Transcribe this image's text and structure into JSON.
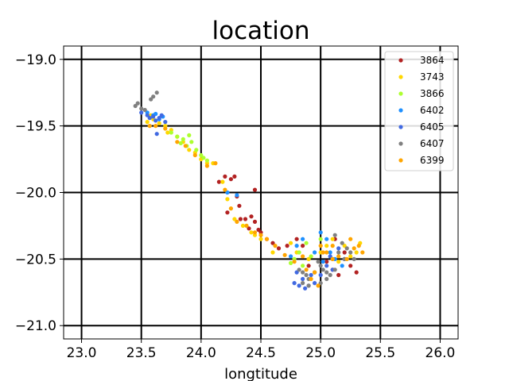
{
  "chart_data": {
    "type": "scatter",
    "title": "location",
    "xlabel": "longtitude",
    "ylabel": "",
    "xlim": [
      22.85,
      26.15
    ],
    "ylim": [
      -21.1,
      -18.9
    ],
    "xticks": [
      23.0,
      23.5,
      24.0,
      24.5,
      25.0,
      25.5,
      26.0
    ],
    "yticks": [
      -19.0,
      -19.5,
      -20.0,
      -20.5,
      -21.0
    ],
    "xtick_labels": [
      "23.0",
      "23.5",
      "24.0",
      "24.5",
      "25.0",
      "25.5",
      "26.0"
    ],
    "ytick_labels": [
      "−19.0",
      "−19.5",
      "−20.0",
      "−20.5",
      "−21.0"
    ],
    "grid": true,
    "legend_position": "top-right",
    "series": [
      {
        "name": "3864",
        "color": "#b22222",
        "points": [
          [
            24.15,
            -19.92
          ],
          [
            24.2,
            -19.88
          ],
          [
            24.25,
            -19.9
          ],
          [
            24.3,
            -20.03
          ],
          [
            24.45,
            -19.98
          ],
          [
            24.32,
            -20.1
          ],
          [
            24.37,
            -20.2
          ],
          [
            24.42,
            -20.18
          ],
          [
            24.45,
            -20.22
          ],
          [
            24.5,
            -20.3
          ],
          [
            24.55,
            -20.35
          ],
          [
            24.6,
            -20.38
          ],
          [
            24.48,
            -20.28
          ],
          [
            24.65,
            -20.42
          ],
          [
            24.72,
            -20.4
          ],
          [
            24.8,
            -20.35
          ],
          [
            24.85,
            -20.4
          ],
          [
            25.1,
            -20.58
          ],
          [
            25.15,
            -20.62
          ],
          [
            25.25,
            -20.55
          ],
          [
            25.2,
            -20.45
          ],
          [
            24.28,
            -19.88
          ],
          [
            24.33,
            -20.2
          ],
          [
            24.4,
            -20.27
          ],
          [
            25.05,
            -20.52
          ],
          [
            25.3,
            -20.6
          ],
          [
            24.9,
            -20.55
          ],
          [
            25.12,
            -20.35
          ],
          [
            24.22,
            -20.15
          ]
        ]
      },
      {
        "name": "3743",
        "color": "#ffd700",
        "points": [
          [
            23.6,
            -19.45
          ],
          [
            23.65,
            -19.48
          ],
          [
            23.7,
            -19.5
          ],
          [
            23.75,
            -19.53
          ],
          [
            23.55,
            -19.47
          ],
          [
            23.8,
            -19.58
          ],
          [
            23.85,
            -19.62
          ],
          [
            23.9,
            -19.68
          ],
          [
            23.95,
            -19.7
          ],
          [
            24.0,
            -19.75
          ],
          [
            24.05,
            -19.78
          ],
          [
            24.1,
            -19.78
          ],
          [
            24.18,
            -19.92
          ],
          [
            24.22,
            -20.05
          ],
          [
            24.28,
            -20.2
          ],
          [
            24.35,
            -20.25
          ],
          [
            24.42,
            -20.3
          ],
          [
            24.5,
            -20.35
          ],
          [
            24.6,
            -20.45
          ],
          [
            24.75,
            -20.38
          ],
          [
            24.8,
            -20.45
          ],
          [
            24.9,
            -20.5
          ],
          [
            25.0,
            -20.45
          ],
          [
            25.05,
            -20.4
          ],
          [
            25.1,
            -20.35
          ],
          [
            25.2,
            -20.4
          ],
          [
            25.3,
            -20.45
          ],
          [
            25.33,
            -20.38
          ],
          [
            25.25,
            -20.48
          ],
          [
            24.95,
            -20.6
          ],
          [
            25.15,
            -20.52
          ],
          [
            23.58,
            -19.42
          ],
          [
            23.72,
            -19.55
          ],
          [
            24.45,
            -20.32
          ]
        ]
      },
      {
        "name": "3866",
        "color": "#adff2f",
        "points": [
          [
            23.75,
            -19.55
          ],
          [
            23.8,
            -19.58
          ],
          [
            23.85,
            -19.6
          ],
          [
            23.88,
            -19.65
          ],
          [
            23.92,
            -19.62
          ],
          [
            23.96,
            -19.68
          ],
          [
            24.0,
            -19.72
          ],
          [
            24.05,
            -19.76
          ],
          [
            23.9,
            -19.57
          ],
          [
            24.78,
            -20.5
          ],
          [
            24.82,
            -20.45
          ],
          [
            24.88,
            -20.38
          ],
          [
            24.92,
            -20.48
          ],
          [
            24.75,
            -20.53
          ],
          [
            25.0,
            -20.35
          ],
          [
            24.85,
            -20.55
          ],
          [
            23.83,
            -19.63
          ],
          [
            24.02,
            -19.74
          ]
        ]
      },
      {
        "name": "6402",
        "color": "#1e90ff",
        "points": [
          [
            23.55,
            -19.4
          ],
          [
            23.6,
            -19.42
          ],
          [
            23.65,
            -19.45
          ],
          [
            23.62,
            -19.41
          ],
          [
            24.22,
            -20.0
          ],
          [
            24.3,
            -20.02
          ],
          [
            24.8,
            -20.4
          ],
          [
            24.85,
            -20.35
          ],
          [
            25.0,
            -20.3
          ],
          [
            25.05,
            -20.35
          ],
          [
            25.08,
            -20.45
          ],
          [
            25.12,
            -20.5
          ],
          [
            25.18,
            -20.55
          ],
          [
            24.95,
            -20.45
          ],
          [
            25.02,
            -20.52
          ],
          [
            24.75,
            -20.48
          ],
          [
            23.68,
            -19.43
          ]
        ]
      },
      {
        "name": "6405",
        "color": "#4169e1",
        "points": [
          [
            23.5,
            -19.4
          ],
          [
            23.55,
            -19.42
          ],
          [
            23.6,
            -19.43
          ],
          [
            23.65,
            -19.44
          ],
          [
            23.7,
            -19.47
          ],
          [
            23.57,
            -19.44
          ],
          [
            23.62,
            -19.46
          ],
          [
            23.67,
            -19.42
          ],
          [
            23.63,
            -19.56
          ],
          [
            24.8,
            -20.6
          ],
          [
            24.85,
            -20.65
          ],
          [
            24.9,
            -20.7
          ],
          [
            24.95,
            -20.68
          ],
          [
            25.0,
            -20.62
          ],
          [
            25.05,
            -20.55
          ],
          [
            25.1,
            -20.58
          ],
          [
            24.82,
            -20.7
          ],
          [
            24.87,
            -20.72
          ],
          [
            24.78,
            -20.68
          ],
          [
            24.92,
            -20.62
          ],
          [
            25.08,
            -20.48
          ],
          [
            25.15,
            -20.42
          ],
          [
            25.2,
            -20.5
          ]
        ]
      },
      {
        "name": "6407",
        "color": "#808080",
        "points": [
          [
            23.45,
            -19.35
          ],
          [
            23.47,
            -19.33
          ],
          [
            23.5,
            -19.37
          ],
          [
            23.53,
            -19.38
          ],
          [
            23.6,
            -19.28
          ],
          [
            23.63,
            -19.25
          ],
          [
            23.58,
            -19.3
          ],
          [
            24.85,
            -20.6
          ],
          [
            24.9,
            -20.65
          ],
          [
            24.95,
            -20.6
          ],
          [
            25.0,
            -20.55
          ],
          [
            25.05,
            -20.6
          ],
          [
            25.1,
            -20.5
          ],
          [
            25.15,
            -20.45
          ],
          [
            25.2,
            -20.5
          ],
          [
            25.25,
            -20.45
          ],
          [
            24.9,
            -20.7
          ],
          [
            24.85,
            -20.68
          ],
          [
            25.0,
            -20.68
          ],
          [
            25.05,
            -20.65
          ],
          [
            25.08,
            -20.62
          ],
          [
            25.12,
            -20.58
          ],
          [
            25.18,
            -20.38
          ],
          [
            25.22,
            -20.42
          ],
          [
            25.28,
            -20.5
          ],
          [
            25.02,
            -20.58
          ],
          [
            24.98,
            -20.52
          ],
          [
            24.88,
            -20.62
          ],
          [
            24.82,
            -20.58
          ],
          [
            25.12,
            -20.32
          ]
        ]
      },
      {
        "name": "6399",
        "color": "#ffa500",
        "points": [
          [
            23.57,
            -19.5
          ],
          [
            23.62,
            -19.5
          ],
          [
            23.7,
            -19.52
          ],
          [
            23.8,
            -19.62
          ],
          [
            23.87,
            -19.65
          ],
          [
            23.95,
            -19.72
          ],
          [
            24.05,
            -19.8
          ],
          [
            24.12,
            -19.78
          ],
          [
            24.2,
            -19.98
          ],
          [
            24.25,
            -20.12
          ],
          [
            24.3,
            -20.22
          ],
          [
            24.38,
            -20.25
          ],
          [
            24.45,
            -20.3
          ],
          [
            24.5,
            -20.32
          ],
          [
            24.55,
            -20.35
          ],
          [
            24.62,
            -20.4
          ],
          [
            24.7,
            -20.47
          ],
          [
            24.78,
            -20.52
          ],
          [
            24.88,
            -20.58
          ],
          [
            24.95,
            -20.6
          ],
          [
            25.0,
            -20.4
          ],
          [
            25.05,
            -20.45
          ],
          [
            25.1,
            -20.5
          ],
          [
            25.15,
            -20.48
          ],
          [
            25.22,
            -20.5
          ],
          [
            25.28,
            -20.42
          ],
          [
            25.32,
            -20.4
          ],
          [
            25.35,
            -20.45
          ],
          [
            25.25,
            -20.35
          ],
          [
            25.1,
            -20.4
          ],
          [
            24.92,
            -20.65
          ],
          [
            24.98,
            -20.7
          ],
          [
            25.02,
            -20.45
          ],
          [
            24.85,
            -20.48
          ]
        ]
      }
    ]
  }
}
